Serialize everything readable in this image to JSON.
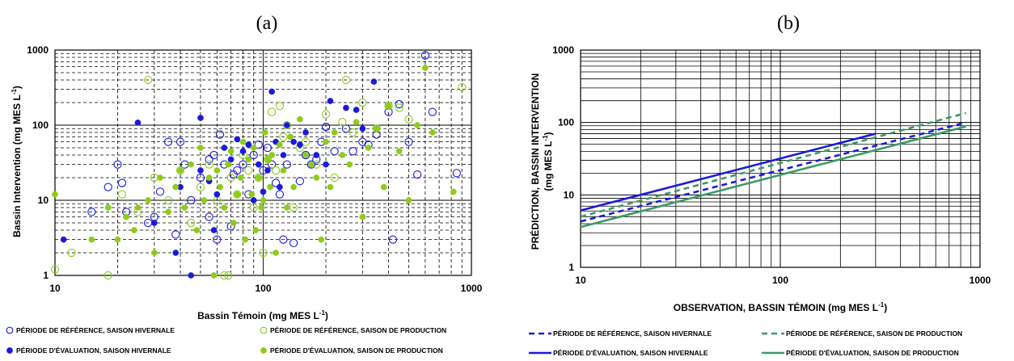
{
  "chart_data": [
    {
      "type": "scatter",
      "panel_label": "(a)",
      "xlabel": "Bassin Témoin (mg  MES L",
      "xlabel_sup": "-1",
      "xlabel_end": ")",
      "ylabel": "Bassin Intervention (mg  MES L",
      "ylabel_sup": "-1",
      "ylabel_end": ")",
      "xscale": "log",
      "yscale": "log",
      "xlim": [
        10,
        1000
      ],
      "ylim": [
        1,
        1000
      ],
      "x_ticks": [
        "10",
        "100",
        "1000"
      ],
      "y_ticks": [
        "1",
        "10",
        "100",
        "1000"
      ],
      "grid": true,
      "legend_position": "bottom",
      "series": [
        {
          "name": "PÉRIODE DE RÉFÉRENCE, SAISON HIVERNALE",
          "marker": "open-circle",
          "color": "#1a1adc",
          "points": [
            [
              15,
              7
            ],
            [
              18,
              15
            ],
            [
              20,
              30
            ],
            [
              21,
              17
            ],
            [
              22,
              7
            ],
            [
              28,
              5
            ],
            [
              30,
              6
            ],
            [
              32,
              13
            ],
            [
              35,
              60
            ],
            [
              38,
              3.5
            ],
            [
              40,
              60
            ],
            [
              42,
              30
            ],
            [
              45,
              10
            ],
            [
              50,
              20
            ],
            [
              55,
              6
            ],
            [
              55,
              35
            ],
            [
              58,
              40
            ],
            [
              60,
              3
            ],
            [
              62,
              75
            ],
            [
              65,
              30
            ],
            [
              70,
              4.5
            ],
            [
              72,
              22
            ],
            [
              75,
              25
            ],
            [
              80,
              30
            ],
            [
              85,
              12
            ],
            [
              90,
              40
            ],
            [
              95,
              55
            ],
            [
              100,
              25
            ],
            [
              105,
              50
            ],
            [
              110,
              30
            ],
            [
              115,
              17
            ],
            [
              120,
              12
            ],
            [
              125,
              3
            ],
            [
              130,
              30
            ],
            [
              140,
              2.7
            ],
            [
              150,
              18
            ],
            [
              160,
              40
            ],
            [
              170,
              30
            ],
            [
              180,
              35
            ],
            [
              190,
              60
            ],
            [
              200,
              95
            ],
            [
              220,
              45
            ],
            [
              250,
              90
            ],
            [
              270,
              45
            ],
            [
              300,
              60
            ],
            [
              320,
              55
            ],
            [
              350,
              75
            ],
            [
              400,
              150
            ],
            [
              420,
              3
            ],
            [
              450,
              190
            ],
            [
              500,
              60
            ],
            [
              550,
              22
            ],
            [
              600,
              850
            ],
            [
              650,
              150
            ],
            [
              850,
              23
            ]
          ]
        },
        {
          "name": "PÉRIODE DE RÉFÉRENCE, SAISON DE PRODUCTION",
          "marker": "open-circle",
          "color": "#8ccc1a",
          "points": [
            [
              10,
              1.2
            ],
            [
              12,
              2
            ],
            [
              18,
              1
            ],
            [
              21,
              12
            ],
            [
              25,
              7
            ],
            [
              28,
              400
            ],
            [
              30,
              20
            ],
            [
              35,
              10
            ],
            [
              40,
              25
            ],
            [
              45,
              5
            ],
            [
              50,
              15
            ],
            [
              55,
              30
            ],
            [
              60,
              10
            ],
            [
              65,
              1
            ],
            [
              68,
              1
            ],
            [
              70,
              20
            ],
            [
              75,
              12
            ],
            [
              80,
              40
            ],
            [
              85,
              25
            ],
            [
              90,
              8
            ],
            [
              95,
              20
            ],
            [
              100,
              2
            ],
            [
              105,
              35
            ],
            [
              110,
              150
            ],
            [
              115,
              25
            ],
            [
              120,
              180
            ],
            [
              125,
              70
            ],
            [
              130,
              100
            ],
            [
              140,
              8
            ],
            [
              150,
              50
            ],
            [
              160,
              60
            ],
            [
              180,
              30
            ],
            [
              200,
              140
            ],
            [
              220,
              20
            ],
            [
              240,
              110
            ],
            [
              250,
              400
            ],
            [
              270,
              80
            ],
            [
              300,
              200
            ],
            [
              350,
              90
            ],
            [
              400,
              180
            ],
            [
              450,
              170
            ],
            [
              500,
              120
            ],
            [
              900,
              320
            ]
          ]
        },
        {
          "name": "PÉRIODE D'ÉVALUATION, SAISON HIVERNALE",
          "marker": "filled-circle",
          "color": "#1a1adc",
          "points": [
            [
              11,
              3
            ],
            [
              25,
              108
            ],
            [
              30,
              5
            ],
            [
              38,
              2
            ],
            [
              40,
              15
            ],
            [
              45,
              1
            ],
            [
              50,
              25
            ],
            [
              50,
              125
            ],
            [
              55,
              18
            ],
            [
              58,
              4
            ],
            [
              60,
              12
            ],
            [
              65,
              50
            ],
            [
              70,
              35
            ],
            [
              75,
              65
            ],
            [
              80,
              45
            ],
            [
              85,
              55
            ],
            [
              90,
              10
            ],
            [
              95,
              30
            ],
            [
              100,
              13
            ],
            [
              105,
              25
            ],
            [
              110,
              280
            ],
            [
              115,
              60
            ],
            [
              120,
              15
            ],
            [
              125,
              40
            ],
            [
              130,
              100
            ],
            [
              140,
              60
            ],
            [
              150,
              55
            ],
            [
              160,
              80
            ],
            [
              180,
              40
            ],
            [
              200,
              30
            ],
            [
              210,
              210
            ],
            [
              250,
              170
            ],
            [
              280,
              160
            ],
            [
              300,
              90
            ],
            [
              340,
              380
            ]
          ]
        },
        {
          "name": "PÉRIODE D'ÉVALUATION, SAISON DE PRODUCTION",
          "marker": "filled-circle",
          "color": "#8ccc1a",
          "points": [
            [
              10,
              12
            ],
            [
              15,
              3
            ],
            [
              18,
              8
            ],
            [
              20,
              3
            ],
            [
              22,
              6
            ],
            [
              24,
              4
            ],
            [
              25,
              8
            ],
            [
              28,
              10
            ],
            [
              30,
              2
            ],
            [
              32,
              20
            ],
            [
              35,
              7
            ],
            [
              38,
              15
            ],
            [
              40,
              25
            ],
            [
              42,
              8
            ],
            [
              45,
              30
            ],
            [
              48,
              4
            ],
            [
              50,
              50
            ],
            [
              52,
              10
            ],
            [
              55,
              20
            ],
            [
              58,
              1
            ],
            [
              60,
              25
            ],
            [
              62,
              15
            ],
            [
              65,
              8
            ],
            [
              68,
              30
            ],
            [
              70,
              45
            ],
            [
              72,
              5
            ],
            [
              75,
              12
            ],
            [
              78,
              20
            ],
            [
              80,
              60
            ],
            [
              82,
              3
            ],
            [
              85,
              35
            ],
            [
              88,
              12
            ],
            [
              90,
              50
            ],
            [
              92,
              4
            ],
            [
              95,
              20
            ],
            [
              98,
              8
            ],
            [
              100,
              10
            ],
            [
              102,
              80
            ],
            [
              105,
              35
            ],
            [
              108,
              15
            ],
            [
              110,
              40
            ],
            [
              115,
              2
            ],
            [
              120,
              55
            ],
            [
              125,
              25
            ],
            [
              130,
              8
            ],
            [
              135,
              70
            ],
            [
              140,
              15
            ],
            [
              150,
              120
            ],
            [
              160,
              40
            ],
            [
              170,
              30
            ],
            [
              180,
              20
            ],
            [
              190,
              3
            ],
            [
              200,
              60
            ],
            [
              210,
              15
            ],
            [
              220,
              80
            ],
            [
              240,
              40
            ],
            [
              260,
              30
            ],
            [
              280,
              110
            ],
            [
              300,
              6
            ],
            [
              320,
              50
            ],
            [
              350,
              90
            ],
            [
              380,
              15
            ],
            [
              400,
              180
            ],
            [
              450,
              45
            ],
            [
              500,
              10
            ],
            [
              550,
              100
            ],
            [
              600,
              580
            ],
            [
              650,
              80
            ],
            [
              820,
              13
            ]
          ]
        }
      ]
    },
    {
      "type": "line",
      "panel_label": "(b)",
      "xlabel": "OBSERVATION, BASSIN TÉMOIN (mg MES L",
      "xlabel_sup": "-1",
      "xlabel_end": ")",
      "ylabel_line1": "PRÉDICTION, BASSIN INTERVENTION",
      "ylabel_line2": "(mg MES L",
      "ylabel_sup": "-1",
      "ylabel_end": ")",
      "xscale": "log",
      "yscale": "log",
      "xlim": [
        10,
        1000
      ],
      "ylim": [
        1,
        1000
      ],
      "x_ticks": [
        "10",
        "100",
        "1000"
      ],
      "y_ticks": [
        "1",
        "10",
        "100",
        "1000"
      ],
      "grid": true,
      "legend_position": "bottom",
      "series": [
        {
          "name": "PÉRIODE DE RÉFÉRENCE, SAISON HIVERNALE",
          "style": "dashed",
          "color": "#1a1adc",
          "x": [
            10,
            850
          ],
          "y": [
            4.3,
            100
          ]
        },
        {
          "name": "PÉRIODE DE RÉFÉRENCE, SAISON DE PRODUCTION",
          "style": "dashed",
          "color": "#3c9a66",
          "x": [
            10,
            850
          ],
          "y": [
            5.0,
            135
          ]
        },
        {
          "name": "PÉRIODE D'ÉVALUATION, SAISON HIVERNALE",
          "style": "solid",
          "color": "#1a1adc",
          "x": [
            10,
            300
          ],
          "y": [
            6.1,
            70
          ]
        },
        {
          "name": "PÉRIODE D'ÉVALUATION, SAISON DE PRODUCTION",
          "style": "solid",
          "color": "#3c9a66",
          "x": [
            10,
            850
          ],
          "y": [
            3.6,
            88
          ]
        }
      ]
    }
  ]
}
